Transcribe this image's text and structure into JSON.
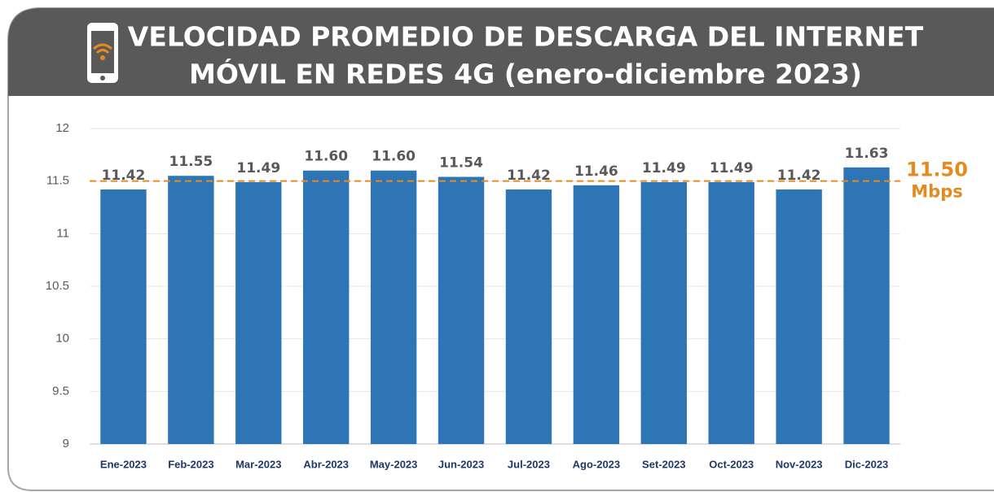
{
  "chart_data": {
    "type": "bar",
    "title": [
      "VELOCIDAD PROMEDIO DE DESCARGA DEL INTERNET",
      "MÓVIL EN REDES 4G (enero-diciembre 2023)"
    ],
    "categories": [
      "Ene-2023",
      "Feb-2023",
      "Mar-2023",
      "Abr-2023",
      "May-2023",
      "Jun-2023",
      "Jul-2023",
      "Ago-2023",
      "Set-2023",
      "Oct-2023",
      "Nov-2023",
      "Dic-2023"
    ],
    "values": [
      11.42,
      11.55,
      11.49,
      11.6,
      11.6,
      11.54,
      11.42,
      11.46,
      11.49,
      11.49,
      11.42,
      11.63
    ],
    "value_labels": [
      "11.42",
      "11.55",
      "11.49",
      "11.60",
      "11.60",
      "11.54",
      "11.42",
      "11.46",
      "11.49",
      "11.49",
      "11.42",
      "11.63"
    ],
    "color": "#2e75b6",
    "ylim": [
      9,
      12
    ],
    "yticks": [
      9,
      9.5,
      10,
      10.5,
      11,
      11.5,
      12
    ],
    "grid": true,
    "reference_line": {
      "value": 11.5,
      "label": "11.50",
      "unit": "Mbps",
      "color": "#e58a1f"
    }
  }
}
